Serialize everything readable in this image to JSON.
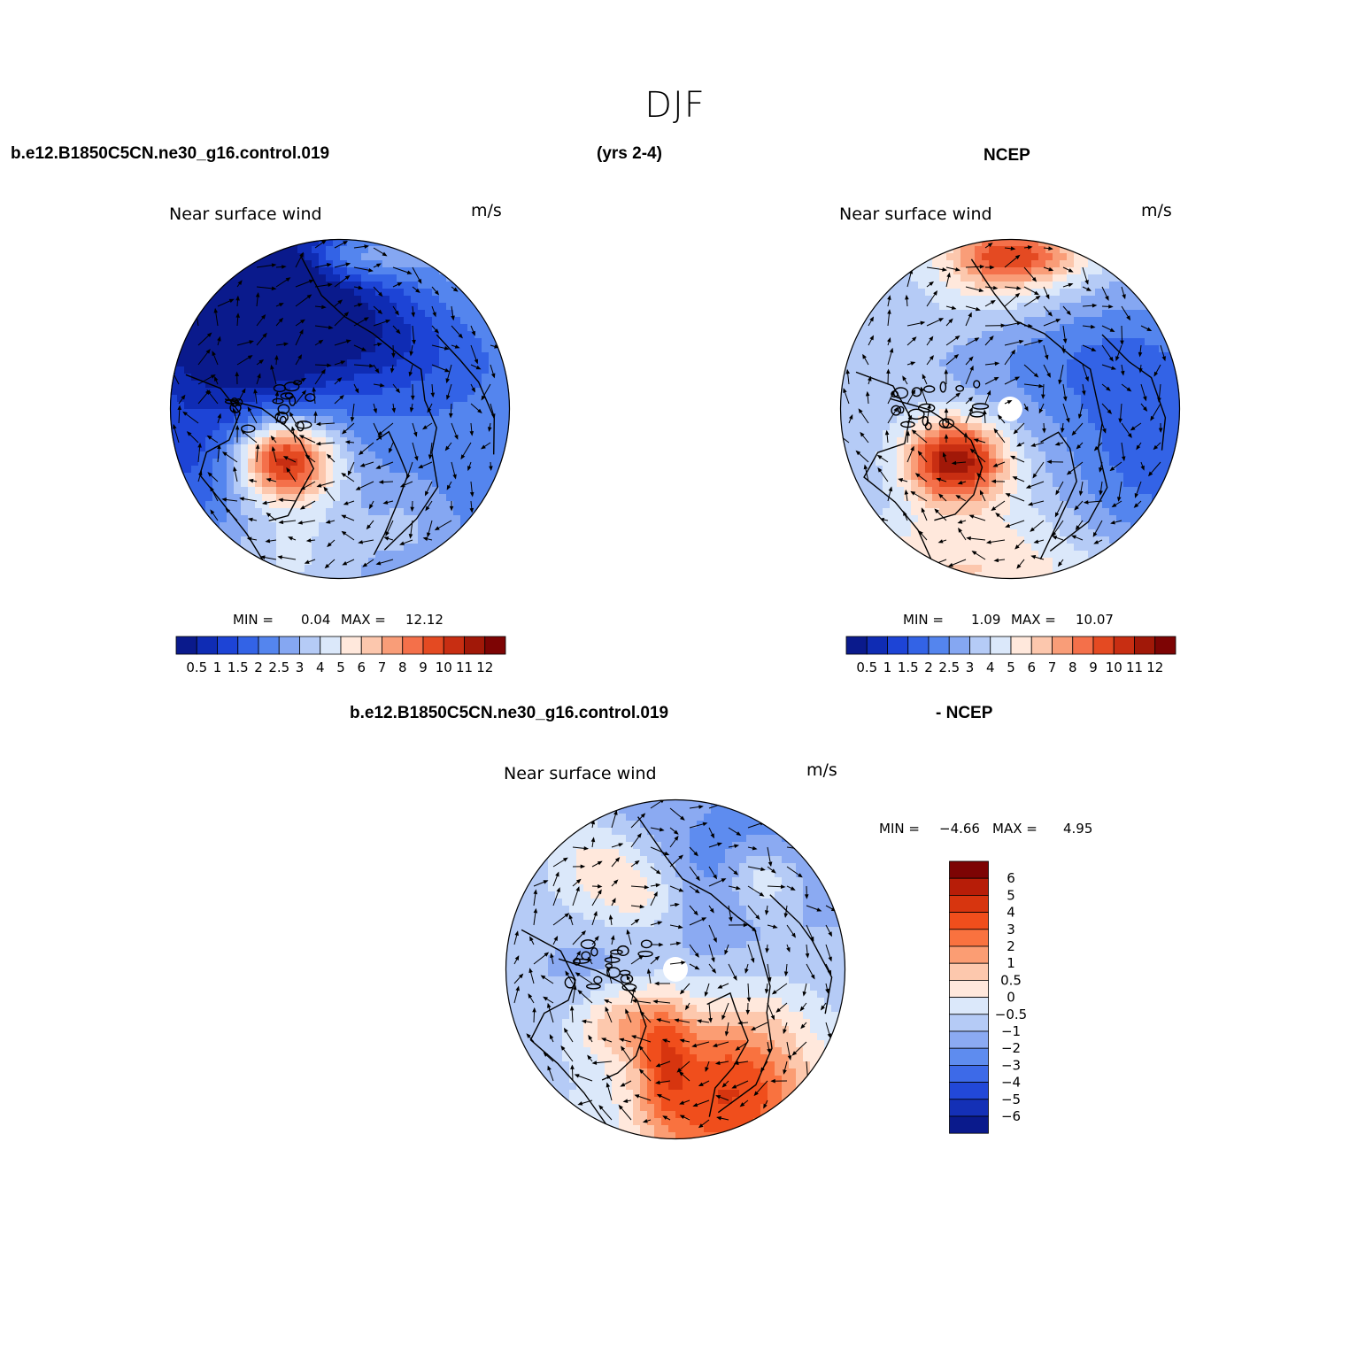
{
  "page": {
    "title": "DJF",
    "top_left_label": "b.e12.B1850C5CN.ne30_g16.control.019",
    "top_center_label": "(yrs 2-4)",
    "top_right_label": "NCEP",
    "bottom_left_label": "b.e12.B1850C5CN.ne30_g16.control.019",
    "bottom_right_label": "- NCEP"
  },
  "colors": {
    "sequential": [
      "#0a1a8c",
      "#0f2cb4",
      "#1d44d6",
      "#3363e6",
      "#5485ee",
      "#85a7f2",
      "#b5cbf6",
      "#dbe8fa",
      "#ffe8dc",
      "#fcc7ad",
      "#f99d78",
      "#f4704a",
      "#e44a22",
      "#c82e12",
      "#a11808",
      "#7d0404"
    ],
    "diverging": [
      "#7d0404",
      "#b71d08",
      "#d7350f",
      "#f04e1c",
      "#f9723f",
      "#fb9d73",
      "#fdc8ad",
      "#ffe8dc",
      "#dbe8fa",
      "#b5cbf6",
      "#8baaf2",
      "#5e8cef",
      "#3d6ae8",
      "#2248d8",
      "#1430b6",
      "#0a1a8c"
    ]
  },
  "panels": [
    {
      "id": "model",
      "title": "Near surface wind",
      "units": "m/s",
      "min_label": "MIN = ",
      "min_value": "0.04",
      "max_label": "MAX = ",
      "max_value": "12.12",
      "colorbar_ticks": [
        "0.5",
        "1",
        "1.5",
        "2",
        "2.5",
        "3",
        "4",
        "5",
        "6",
        "7",
        "8",
        "9",
        "10",
        "11",
        "12"
      ]
    },
    {
      "id": "ncep",
      "title": "Near surface wind",
      "units": "m/s",
      "min_label": "MIN = ",
      "min_value": "1.09",
      "max_label": "MAX = ",
      "max_value": "10.07",
      "colorbar_ticks": [
        "0.5",
        "1",
        "1.5",
        "2",
        "2.5",
        "3",
        "4",
        "5",
        "6",
        "7",
        "8",
        "9",
        "10",
        "11",
        "12"
      ]
    },
    {
      "id": "diff",
      "title": "Near surface wind",
      "units": "m/s",
      "min_label": "MIN = ",
      "min_value": "−4.66",
      "max_label": "MAX = ",
      "max_value": "4.95",
      "colorbar_ticks": [
        "6",
        "5",
        "4",
        "3",
        "2",
        "1",
        "0.5",
        "0",
        "−0.5",
        "−1",
        "−2",
        "−3",
        "−4",
        "−5",
        "−6"
      ]
    }
  ]
}
